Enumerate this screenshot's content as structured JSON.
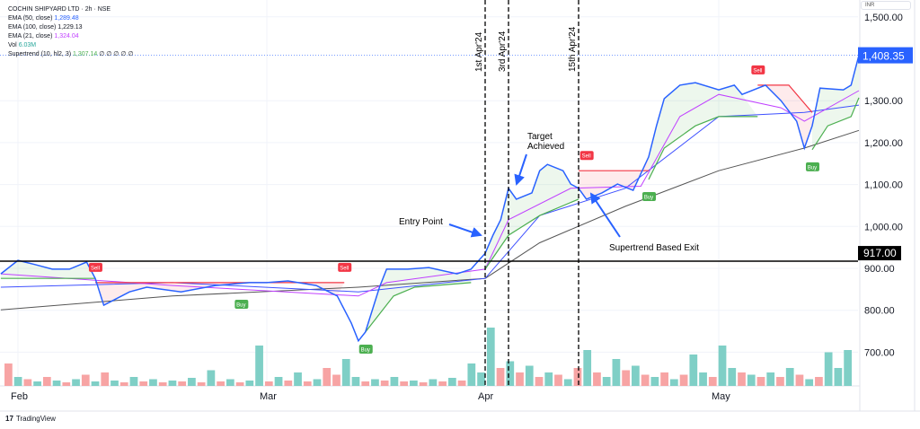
{
  "legend": {
    "title": "COCHIN SHIPYARD LTD · 2h · NSE",
    "ema50": {
      "label": "EMA (50, close)",
      "value": "1,289.48",
      "color": "#2962ff"
    },
    "ema100": {
      "label": "EMA (100, close)",
      "value": "1,229.13",
      "color": "#131722"
    },
    "ema21": {
      "label": "EMA (21, close)",
      "value": "1,324.04",
      "color": "#c040ff"
    },
    "vol": {
      "label": "Vol",
      "value": "6.03M",
      "color": "#26a69a"
    },
    "supertrend": {
      "label": "Supertrend (10, hl2, 3)",
      "value": "1,307.14",
      "extra": "∅ ∅ ∅ ∅ ∅",
      "color": "#4caf50"
    }
  },
  "currency": "INR",
  "branding": "TradingView",
  "chart_data": {
    "type": "line",
    "ylim": [
      630,
      1500
    ],
    "y_ticks": [
      "1,500.00",
      "1,300.00",
      "1,200.00",
      "1,100.00",
      "1,000.00",
      "900.00",
      "800.00",
      "700.00"
    ],
    "y_tick_values": [
      1500,
      1300,
      1200,
      1100,
      1000,
      900,
      800,
      700
    ],
    "x_ticks": [
      {
        "label": "Feb",
        "date": "2024-02-01"
      },
      {
        "label": "Mar",
        "date": "2024-03-01"
      },
      {
        "label": "Apr",
        "date": "2024-04-01"
      },
      {
        "label": "May",
        "date": "2024-05-01"
      }
    ],
    "grid": true,
    "last_price": {
      "label": "1,408.35",
      "value": 1408.35,
      "color": "#2962ff"
    },
    "horizontal_line": {
      "label": "917.00",
      "value": 917
    },
    "price": {
      "color": "#2962ff",
      "points": [
        [
          "2024-01-30",
          887
        ],
        [
          "2024-02-01",
          919
        ],
        [
          "2024-02-03",
          909
        ],
        [
          "2024-02-05",
          898
        ],
        [
          "2024-02-07",
          898
        ],
        [
          "2024-02-09",
          915
        ],
        [
          "2024-02-10",
          876
        ],
        [
          "2024-02-11",
          812
        ],
        [
          "2024-02-14",
          844
        ],
        [
          "2024-02-16",
          855
        ],
        [
          "2024-02-20",
          844
        ],
        [
          "2024-02-24",
          859
        ],
        [
          "2024-02-28",
          866
        ],
        [
          "2024-03-01",
          866
        ],
        [
          "2024-03-04",
          870
        ],
        [
          "2024-03-08",
          859
        ],
        [
          "2024-03-11",
          834
        ],
        [
          "2024-03-13",
          769
        ],
        [
          "2024-03-14",
          727
        ],
        [
          "2024-03-15",
          748
        ],
        [
          "2024-03-17",
          855
        ],
        [
          "2024-03-18",
          898
        ],
        [
          "2024-03-21",
          898
        ],
        [
          "2024-03-24",
          902
        ],
        [
          "2024-03-28",
          887
        ],
        [
          "2024-03-30",
          898
        ],
        [
          "2024-04-01",
          936
        ],
        [
          "2024-04-02",
          979
        ],
        [
          "2024-04-03",
          1016
        ],
        [
          "2024-04-04",
          1091
        ],
        [
          "2024-04-05",
          1065
        ],
        [
          "2024-04-07",
          1080
        ],
        [
          "2024-04-08",
          1133
        ],
        [
          "2024-04-09",
          1148
        ],
        [
          "2024-04-11",
          1133
        ],
        [
          "2024-04-12",
          1101
        ],
        [
          "2024-04-13",
          1091
        ],
        [
          "2024-04-14",
          1065
        ],
        [
          "2024-04-16",
          1080
        ],
        [
          "2024-04-18",
          1101
        ],
        [
          "2024-04-20",
          1086
        ],
        [
          "2024-04-22",
          1166
        ],
        [
          "2024-04-23",
          1240
        ],
        [
          "2024-04-24",
          1305
        ],
        [
          "2024-04-26",
          1337
        ],
        [
          "2024-04-28",
          1343
        ],
        [
          "2024-05-01",
          1326
        ],
        [
          "2024-05-03",
          1337
        ],
        [
          "2024-05-04",
          1315
        ],
        [
          "2024-05-07",
          1337
        ],
        [
          "2024-05-09",
          1300
        ],
        [
          "2024-05-11",
          1251
        ],
        [
          "2024-05-12",
          1187
        ],
        [
          "2024-05-13",
          1240
        ],
        [
          "2024-05-14",
          1330
        ],
        [
          "2024-05-17",
          1326
        ],
        [
          "2024-05-18",
          1337
        ],
        [
          "2024-05-19",
          1408.35
        ]
      ]
    },
    "ema100": {
      "color": "#555555",
      "points": [
        [
          "2024-01-30",
          801
        ],
        [
          "2024-02-19",
          834
        ],
        [
          "2024-03-14",
          855
        ],
        [
          "2024-04-01",
          876
        ],
        [
          "2024-04-08",
          961
        ],
        [
          "2024-04-19",
          1048
        ],
        [
          "2024-05-01",
          1133
        ],
        [
          "2024-05-12",
          1187
        ],
        [
          "2024-05-19",
          1229.13
        ]
      ]
    },
    "ema50": {
      "color": "#3f51ff",
      "points": [
        [
          "2024-01-30",
          855
        ],
        [
          "2024-02-19",
          866
        ],
        [
          "2024-03-14",
          844
        ],
        [
          "2024-04-01",
          876
        ],
        [
          "2024-04-08",
          1026
        ],
        [
          "2024-04-19",
          1091
        ],
        [
          "2024-05-01",
          1262
        ],
        [
          "2024-05-12",
          1272
        ],
        [
          "2024-05-19",
          1289.48
        ]
      ]
    },
    "ema21": {
      "color": "#c040ff",
      "points": [
        [
          "2024-01-30",
          887
        ],
        [
          "2024-02-19",
          859
        ],
        [
          "2024-03-14",
          834
        ],
        [
          "2024-03-18",
          866
        ],
        [
          "2024-04-01",
          898
        ],
        [
          "2024-04-04",
          1016
        ],
        [
          "2024-04-12",
          1091
        ],
        [
          "2024-04-21",
          1096
        ],
        [
          "2024-04-26",
          1262
        ],
        [
          "2024-05-01",
          1315
        ],
        [
          "2024-05-09",
          1283
        ],
        [
          "2024-05-12",
          1251
        ],
        [
          "2024-05-19",
          1324.04
        ]
      ]
    },
    "supertrend": [
      {
        "trend": "up",
        "color": "#4caf50",
        "points": [
          [
            "2024-01-30",
            876
          ],
          [
            "2024-02-10",
            876
          ]
        ]
      },
      {
        "trend": "down",
        "color": "#f23645",
        "points": [
          [
            "2024-02-10",
            866
          ],
          [
            "2024-03-10",
            866
          ],
          [
            "2024-03-12",
            866
          ]
        ]
      },
      {
        "trend": "up",
        "color": "#4caf50",
        "points": [
          [
            "2024-03-15",
            748
          ],
          [
            "2024-03-19",
            834
          ],
          [
            "2024-03-22",
            855
          ],
          [
            "2024-03-30",
            866
          ]
        ]
      },
      {
        "trend": "up",
        "color": "#4caf50",
        "points": [
          [
            "2024-04-01",
            898
          ],
          [
            "2024-04-04",
            979
          ],
          [
            "2024-04-08",
            1026
          ],
          [
            "2024-04-13",
            1065
          ]
        ]
      },
      {
        "trend": "down",
        "color": "#f23645",
        "points": [
          [
            "2024-04-13",
            1133
          ],
          [
            "2024-04-22",
            1133
          ]
        ]
      },
      {
        "trend": "up",
        "color": "#4caf50",
        "points": [
          [
            "2024-04-22",
            1112
          ],
          [
            "2024-04-24",
            1187
          ],
          [
            "2024-04-28",
            1240
          ],
          [
            "2024-05-01",
            1262
          ],
          [
            "2024-05-06",
            1262
          ]
        ]
      },
      {
        "trend": "down",
        "color": "#f23645",
        "points": [
          [
            "2024-05-06",
            1337
          ],
          [
            "2024-05-10",
            1337
          ],
          [
            "2024-05-13",
            1272
          ]
        ]
      },
      {
        "trend": "up",
        "color": "#4caf50",
        "points": [
          [
            "2024-05-13",
            1183
          ],
          [
            "2024-05-15",
            1240
          ],
          [
            "2024-05-18",
            1262
          ],
          [
            "2024-05-19",
            1307.14
          ]
        ]
      }
    ],
    "signals": [
      {
        "label": "Sell",
        "date": "2024-02-10",
        "price": 866
      },
      {
        "label": "Buy",
        "date": "2024-02-27",
        "price": 855
      },
      {
        "label": "Sell",
        "date": "2024-03-12",
        "price": 866
      },
      {
        "label": "Buy",
        "date": "2024-03-15",
        "price": 748
      },
      {
        "label": "Sell",
        "date": "2024-04-14",
        "price": 1133
      },
      {
        "label": "Buy",
        "date": "2024-04-22",
        "price": 1112
      },
      {
        "label": "Sell",
        "date": "2024-05-06",
        "price": 1337
      },
      {
        "label": "Buy",
        "date": "2024-05-13",
        "price": 1183
      }
    ],
    "vertical_markers": [
      {
        "label": "1st Apr'24",
        "date": "2024-04-01"
      },
      {
        "label": "3rd Apr'24",
        "date": "2024-04-04"
      },
      {
        "label": "15th Apr'24",
        "date": "2024-04-13"
      }
    ],
    "annotations": [
      {
        "text": "Entry Point"
      },
      {
        "text": "Target",
        "text2": "Achieved"
      },
      {
        "text": "Supertrend Based Exit"
      }
    ],
    "volume": {
      "up_color": "#7fcfc6",
      "down_color": "#f7a4a4",
      "values": [
        [
          0.5,
          0
        ],
        [
          0.2,
          1
        ],
        [
          0.15,
          0
        ],
        [
          0.1,
          1
        ],
        [
          0.2,
          0
        ],
        [
          0.12,
          1
        ],
        [
          0.08,
          0
        ],
        [
          0.15,
          1
        ],
        [
          0.25,
          0
        ],
        [
          0.1,
          1
        ],
        [
          0.3,
          0
        ],
        [
          0.12,
          1
        ],
        [
          0.08,
          0
        ],
        [
          0.2,
          1
        ],
        [
          0.1,
          0
        ],
        [
          0.15,
          1
        ],
        [
          0.08,
          0
        ],
        [
          0.12,
          1
        ],
        [
          0.1,
          0
        ],
        [
          0.18,
          1
        ],
        [
          0.08,
          0
        ],
        [
          0.35,
          1
        ],
        [
          0.1,
          0
        ],
        [
          0.15,
          1
        ],
        [
          0.08,
          0
        ],
        [
          0.12,
          1
        ],
        [
          0.9,
          1
        ],
        [
          0.1,
          0
        ],
        [
          0.2,
          1
        ],
        [
          0.12,
          0
        ],
        [
          0.3,
          1
        ],
        [
          0.1,
          0
        ],
        [
          0.15,
          1
        ],
        [
          0.4,
          0
        ],
        [
          0.25,
          0
        ],
        [
          0.6,
          1
        ],
        [
          0.2,
          1
        ],
        [
          0.1,
          0
        ],
        [
          0.15,
          1
        ],
        [
          0.12,
          0
        ],
        [
          0.2,
          1
        ],
        [
          0.1,
          0
        ],
        [
          0.12,
          1
        ],
        [
          0.08,
          0
        ],
        [
          0.15,
          1
        ],
        [
          0.1,
          0
        ],
        [
          0.18,
          1
        ],
        [
          0.12,
          0
        ],
        [
          0.5,
          1
        ],
        [
          0.3,
          1
        ],
        [
          1.3,
          1
        ],
        [
          0.4,
          0
        ],
        [
          0.55,
          1
        ],
        [
          0.3,
          0
        ],
        [
          0.45,
          1
        ],
        [
          0.2,
          0
        ],
        [
          0.3,
          1
        ],
        [
          0.25,
          0
        ],
        [
          0.15,
          1
        ],
        [
          0.4,
          0
        ],
        [
          0.8,
          1
        ],
        [
          0.3,
          0
        ],
        [
          0.2,
          1
        ],
        [
          0.6,
          1
        ],
        [
          0.35,
          0
        ],
        [
          0.45,
          1
        ],
        [
          0.25,
          0
        ],
        [
          0.2,
          1
        ],
        [
          0.3,
          0
        ],
        [
          0.15,
          1
        ],
        [
          0.25,
          0
        ],
        [
          0.7,
          1
        ],
        [
          0.3,
          1
        ],
        [
          0.2,
          0
        ],
        [
          0.9,
          1
        ],
        [
          0.4,
          1
        ],
        [
          0.3,
          0
        ],
        [
          0.25,
          1
        ],
        [
          0.2,
          0
        ],
        [
          0.3,
          1
        ],
        [
          0.2,
          0
        ],
        [
          0.4,
          1
        ],
        [
          0.25,
          0
        ],
        [
          0.15,
          1
        ],
        [
          0.2,
          0
        ],
        [
          0.75,
          1
        ],
        [
          0.4,
          1
        ],
        [
          0.8,
          1
        ]
      ]
    }
  }
}
